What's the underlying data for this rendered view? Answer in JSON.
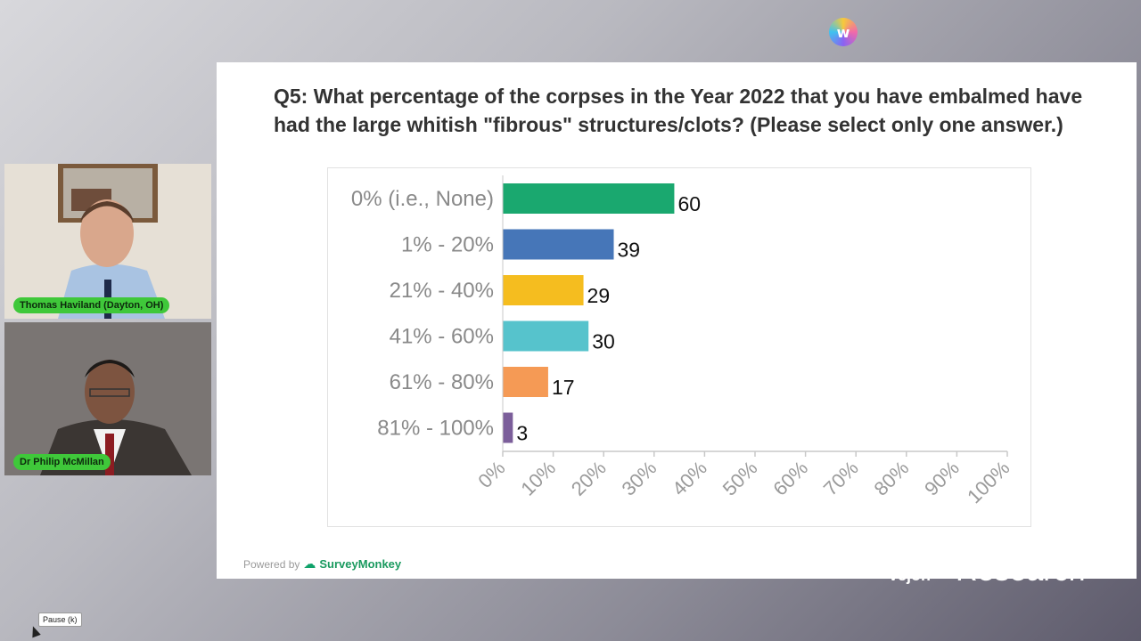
{
  "brand_icon": "w-logo-icon",
  "participants": [
    {
      "name": "Thomas Haviland (Dayton, OH)"
    },
    {
      "name": "Dr Philip McMillan"
    }
  ],
  "slide": {
    "question": "Q5: What percentage of the corpses in the Year 2022 that you have embalmed have had the large whitish \"fibrous\" structures/clots? (Please select only one answer.)",
    "powered_by": "Powered by",
    "brand": "SurveyMonkey"
  },
  "overlay": {
    "partial_text_1": "Vejon",
    "partial_text_2": "Research"
  },
  "tooltip": "Pause (k)",
  "chart_data": {
    "type": "bar",
    "orientation": "horizontal",
    "categories": [
      "0% (i.e., None)",
      "1% - 20%",
      "21% - 40%",
      "41% - 60%",
      "61% - 80%",
      "81% - 100%"
    ],
    "values": [
      60,
      39,
      29,
      30,
      17,
      3
    ],
    "percentages": [
      34,
      22,
      16,
      17,
      9,
      2
    ],
    "colors": [
      "#1aa86f",
      "#4676b8",
      "#f5bd1f",
      "#56c3cc",
      "#f59a55",
      "#7b5e9a"
    ],
    "xticks": [
      "0%",
      "10%",
      "20%",
      "30%",
      "40%",
      "50%",
      "60%",
      "70%",
      "80%",
      "90%",
      "100%"
    ],
    "xlim": [
      0,
      100
    ],
    "grid": false
  }
}
